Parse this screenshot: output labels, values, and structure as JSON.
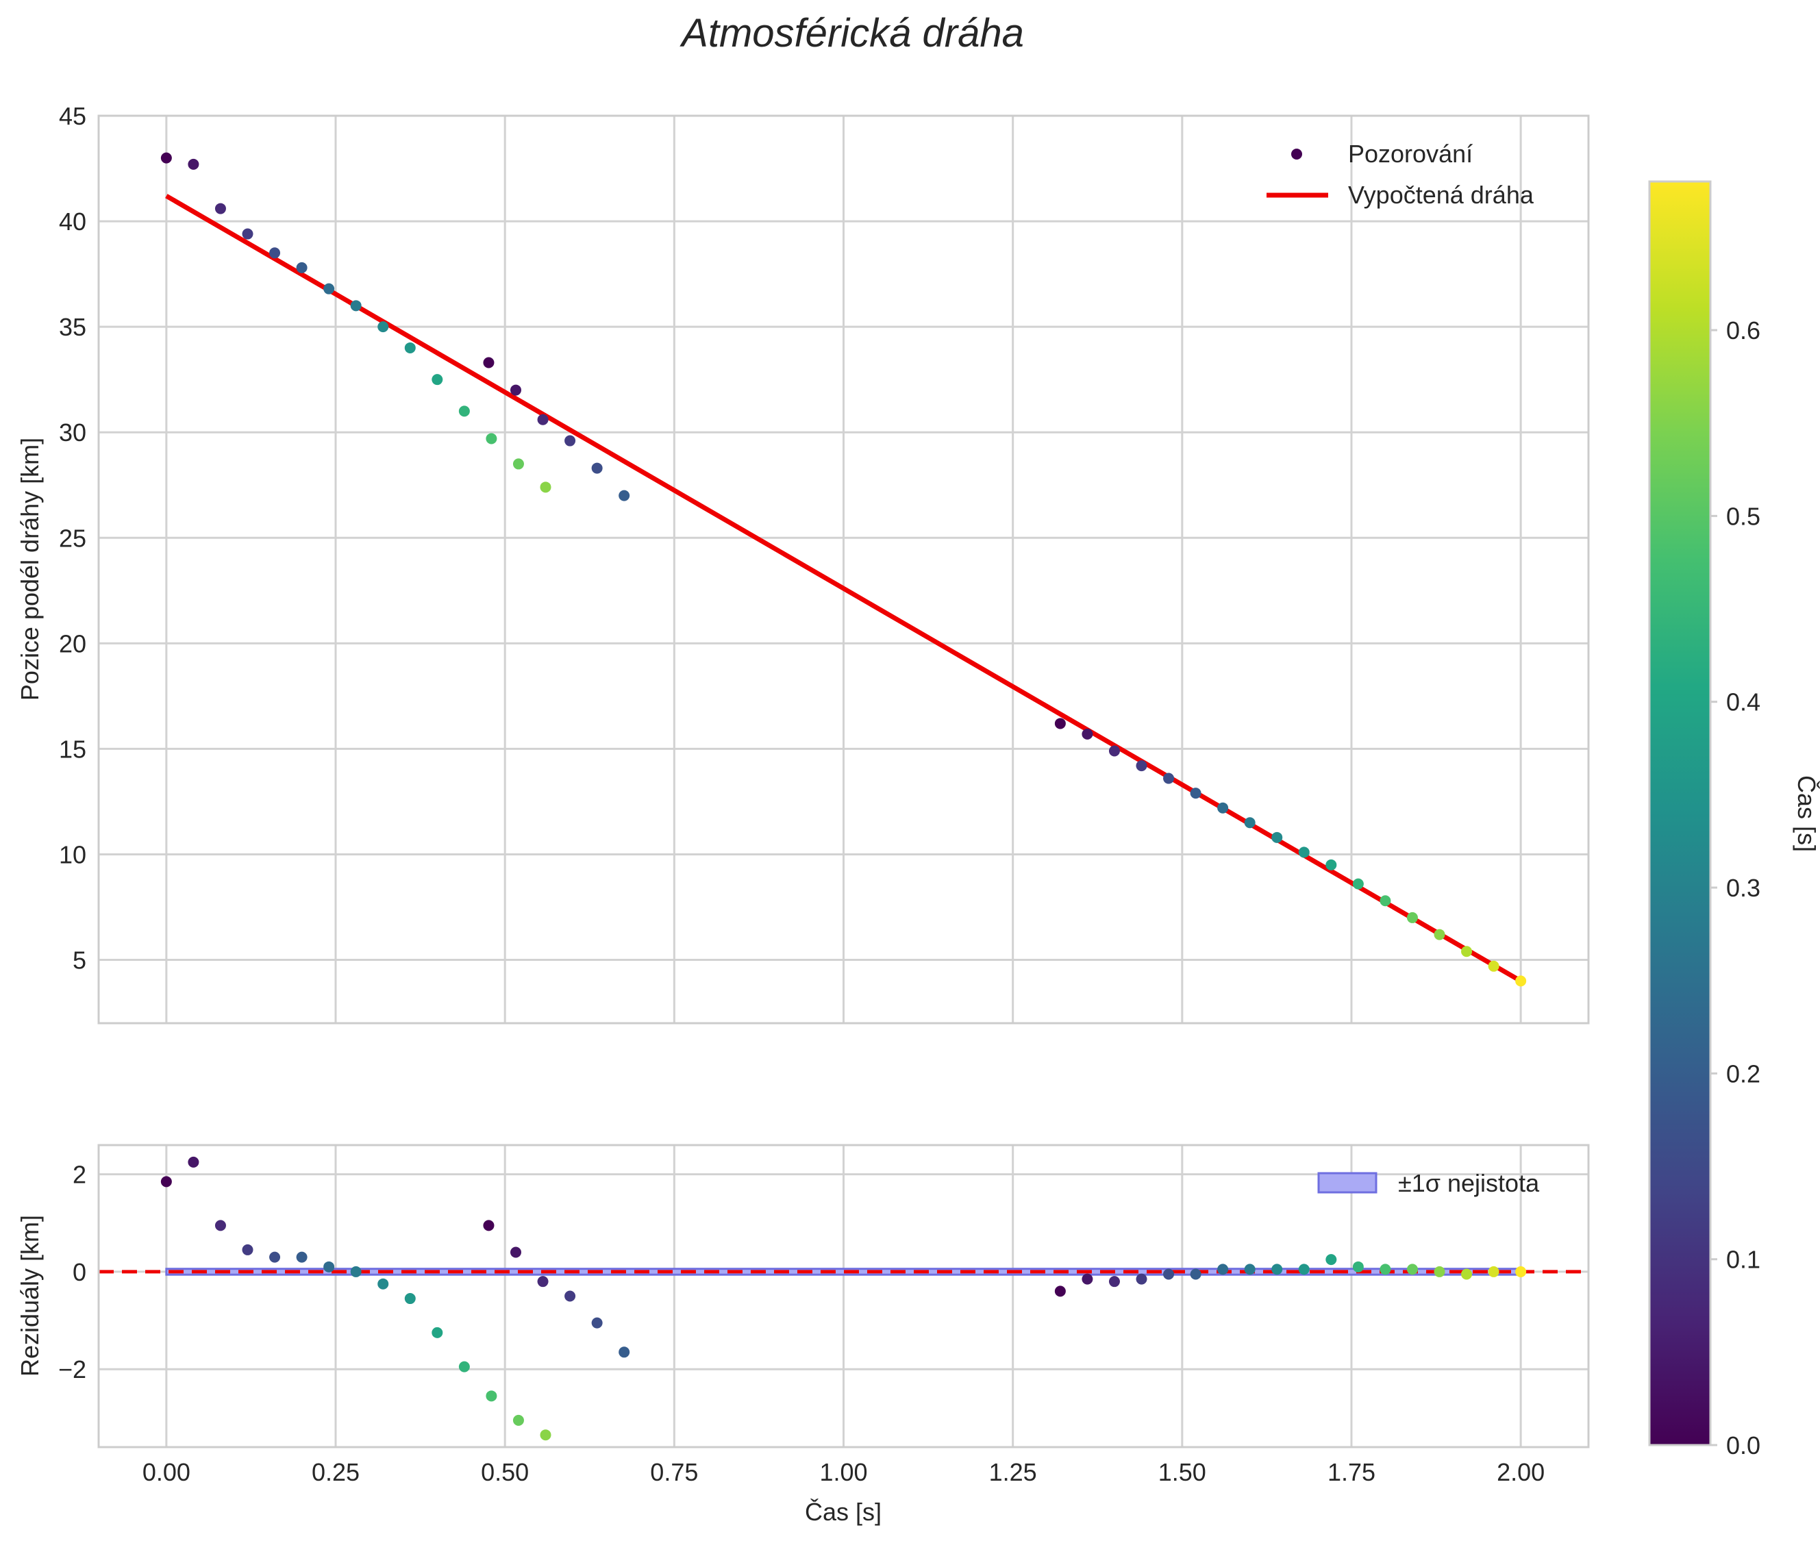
{
  "chart_data": {
    "type": "scatter",
    "title": "Atmosférická dráha",
    "main": {
      "ylabel": "Pozice podél dráhy [km]",
      "xlim": [
        -0.1,
        2.1
      ],
      "ylim": [
        2.0,
        45.0
      ],
      "yticks": [
        5,
        10,
        15,
        20,
        25,
        30,
        35,
        40,
        45
      ],
      "ytick_labels": [
        "5",
        "10",
        "15",
        "20",
        "25",
        "30",
        "35",
        "40",
        "45"
      ],
      "legend": {
        "observations": "Pozorování",
        "fit": "Vypočtená dráha",
        "position": "top-right"
      },
      "fit_line": {
        "x": [
          0.0,
          2.0
        ],
        "y": [
          41.2,
          4.0
        ]
      },
      "observations": {
        "x": [
          0.0,
          0.04,
          0.08,
          0.12,
          0.16,
          0.2,
          0.24,
          0.28,
          0.32,
          0.36,
          0.4,
          0.44,
          0.48,
          0.52,
          0.56,
          0.476,
          0.516,
          0.556,
          0.596,
          0.636,
          0.676,
          1.32,
          1.36,
          1.4,
          1.44,
          1.48,
          1.52,
          1.56,
          1.6,
          1.64,
          1.68,
          1.72,
          1.76,
          1.8,
          1.84,
          1.88,
          1.92,
          1.96,
          2.0
        ],
        "y": [
          43.0,
          42.7,
          40.6,
          39.4,
          38.5,
          37.8,
          36.8,
          36.0,
          35.0,
          34.0,
          32.5,
          31.0,
          29.7,
          28.5,
          27.4,
          33.3,
          32.0,
          30.6,
          29.6,
          28.3,
          27.0,
          16.2,
          15.7,
          14.9,
          14.2,
          13.6,
          12.9,
          12.2,
          11.5,
          10.8,
          10.1,
          9.5,
          8.6,
          7.8,
          7.0,
          6.2,
          5.4,
          4.7,
          4.0
        ],
        "color_value": [
          0.0,
          0.04,
          0.08,
          0.12,
          0.16,
          0.2,
          0.24,
          0.28,
          0.32,
          0.36,
          0.4,
          0.44,
          0.48,
          0.52,
          0.56,
          0.0,
          0.04,
          0.08,
          0.12,
          0.16,
          0.2,
          0.0,
          0.04,
          0.08,
          0.12,
          0.16,
          0.2,
          0.24,
          0.28,
          0.32,
          0.36,
          0.4,
          0.44,
          0.48,
          0.52,
          0.56,
          0.6,
          0.64,
          0.68
        ]
      }
    },
    "residuals": {
      "ylabel": "Reziduály [km]",
      "xlabel": "Čas [s]",
      "xlim": [
        -0.1,
        2.1
      ],
      "ylim": [
        -3.6,
        2.6
      ],
      "xticks": [
        0.0,
        0.25,
        0.5,
        0.75,
        1.0,
        1.25,
        1.5,
        1.75,
        2.0
      ],
      "xtick_labels": [
        "0.00",
        "0.25",
        "0.50",
        "0.75",
        "1.00",
        "1.25",
        "1.50",
        "1.75",
        "2.00"
      ],
      "yticks": [
        -2,
        0,
        2
      ],
      "ytick_labels": [
        "−2",
        "0",
        "2"
      ],
      "legend": {
        "band": "±1σ nejistota",
        "position": "top-right"
      },
      "sigma_band": {
        "x": [
          0.0,
          2.0
        ],
        "halfwidth": 0.06
      },
      "zero_line": 0,
      "points": {
        "x": [
          0.0,
          0.04,
          0.08,
          0.12,
          0.16,
          0.2,
          0.24,
          0.28,
          0.32,
          0.36,
          0.4,
          0.44,
          0.48,
          0.52,
          0.56,
          0.476,
          0.516,
          0.556,
          0.596,
          0.636,
          0.676,
          1.32,
          1.36,
          1.4,
          1.44,
          1.48,
          1.52,
          1.56,
          1.6,
          1.64,
          1.68,
          1.72,
          1.76,
          1.8,
          1.84,
          1.88,
          1.92,
          1.96,
          2.0
        ],
        "y": [
          1.85,
          2.25,
          0.95,
          0.45,
          0.3,
          0.3,
          0.1,
          0.0,
          -0.25,
          -0.55,
          -1.25,
          -1.95,
          -2.55,
          -3.05,
          -3.35,
          0.95,
          0.4,
          -0.2,
          -0.5,
          -1.05,
          -1.65,
          -0.4,
          -0.15,
          -0.2,
          -0.15,
          -0.05,
          -0.05,
          0.05,
          0.05,
          0.05,
          0.05,
          0.25,
          0.1,
          0.05,
          0.05,
          0.0,
          -0.05,
          0.0,
          0.0
        ],
        "color_value": [
          0.0,
          0.04,
          0.08,
          0.12,
          0.16,
          0.2,
          0.24,
          0.28,
          0.32,
          0.36,
          0.4,
          0.44,
          0.48,
          0.52,
          0.56,
          0.0,
          0.04,
          0.08,
          0.12,
          0.16,
          0.2,
          0.0,
          0.04,
          0.08,
          0.12,
          0.16,
          0.2,
          0.24,
          0.28,
          0.32,
          0.36,
          0.4,
          0.44,
          0.48,
          0.52,
          0.56,
          0.6,
          0.64,
          0.68
        ]
      }
    },
    "colorbar": {
      "label": "Čas [s]",
      "range": [
        0.0,
        0.68
      ],
      "ticks": [
        0.0,
        0.1,
        0.2,
        0.3,
        0.4,
        0.5,
        0.6
      ],
      "tick_labels": [
        "0.0",
        "0.1",
        "0.2",
        "0.3",
        "0.4",
        "0.5",
        "0.6"
      ],
      "colormap": "viridis"
    },
    "colors": {
      "fit_line": "#ee0000",
      "zero_line": "#ee0000",
      "band_fill": "#aaaaf5",
      "band_edge": "#6f6fe0",
      "grid": "#d2d2d2",
      "frame": "#cccccc",
      "viridis": [
        "#440154",
        "#482475",
        "#414487",
        "#355f8d",
        "#2a788e",
        "#21918c",
        "#22a884",
        "#44bf70",
        "#7ad151",
        "#bddf26",
        "#fde725"
      ]
    }
  }
}
